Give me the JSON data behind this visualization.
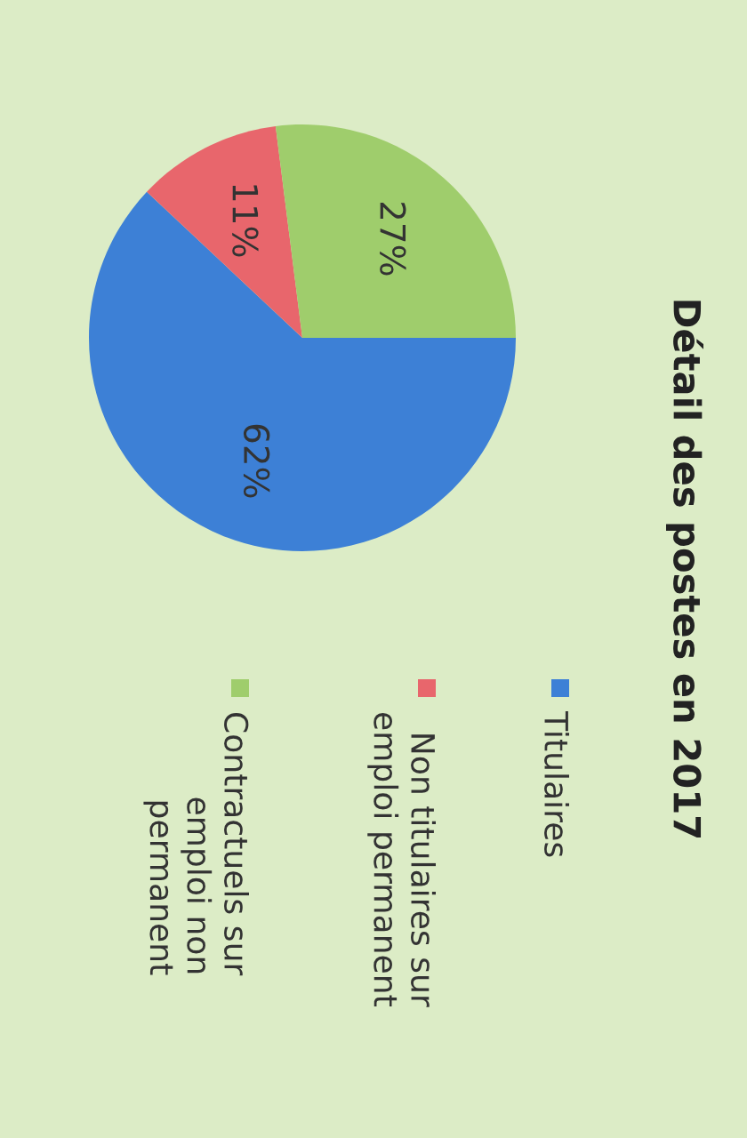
{
  "chart_data": {
    "type": "pie",
    "title": "Détail des postes en 2017",
    "categories": [
      "Titulaires",
      "Non titulaires sur\nemploi permanent",
      "Contractuels sur\nemploi non\npermanent"
    ],
    "values": [
      62,
      11,
      27
    ],
    "colors": [
      "#3d80d6",
      "#e8666c",
      "#9fcd6c"
    ],
    "value_labels": [
      "62%",
      "11%",
      "27%"
    ],
    "legend": "bottom"
  }
}
